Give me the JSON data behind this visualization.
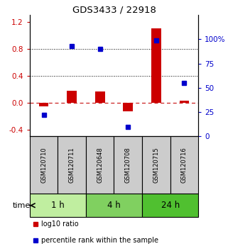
{
  "title": "GDS3433 / 22918",
  "samples": [
    "GSM120710",
    "GSM120711",
    "GSM120648",
    "GSM120708",
    "GSM120715",
    "GSM120716"
  ],
  "log10_ratio": [
    -0.05,
    0.18,
    0.17,
    -0.13,
    1.1,
    0.03
  ],
  "percentile_rank": [
    22,
    93,
    90,
    10,
    99,
    55
  ],
  "groups": [
    {
      "label": "1 h",
      "indices": [
        0,
        1
      ],
      "color": "#c0eea0"
    },
    {
      "label": "4 h",
      "indices": [
        2,
        3
      ],
      "color": "#80d060"
    },
    {
      "label": "24 h",
      "indices": [
        4,
        5
      ],
      "color": "#50c030"
    }
  ],
  "ylim_left": [
    -0.5,
    1.3
  ],
  "ylim_right": [
    0,
    125
  ],
  "left_ticks": [
    -0.4,
    0.0,
    0.4,
    0.8,
    1.2
  ],
  "right_ticks": [
    0,
    25,
    50,
    75,
    100
  ],
  "right_tick_labels": [
    "0",
    "25",
    "50",
    "75",
    "100%"
  ],
  "hlines": [
    0.4,
    0.8
  ],
  "bar_color_red": "#cc0000",
  "marker_color_blue": "#0000cc",
  "dashed_line_color": "#cc2222",
  "bg_color": "#ffffff",
  "sample_box_color": "#cccccc",
  "legend_red_label": "log10 ratio",
  "legend_blue_label": "percentile rank within the sample",
  "bar_width": 0.35,
  "marker_size": 5
}
